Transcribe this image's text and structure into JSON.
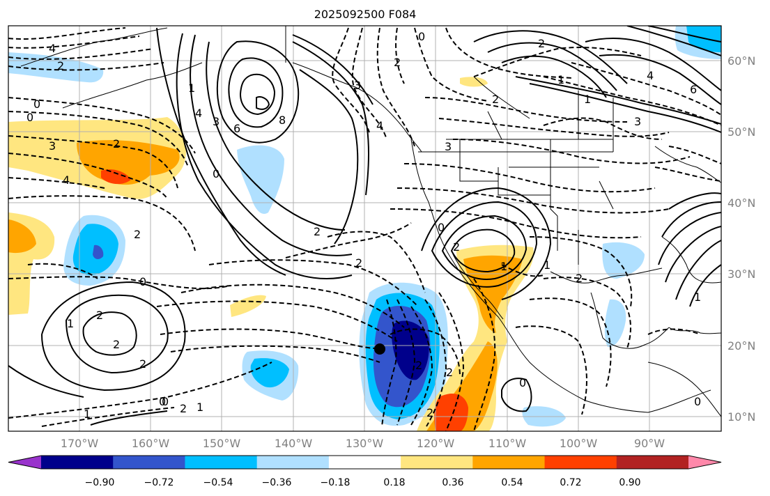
{
  "title": "2025092500 F084",
  "lon_labels": [
    "170°W",
    "160°W",
    "150°W",
    "140°W",
    "130°W",
    "120°W",
    "110°W",
    "100°W",
    "90°W"
  ],
  "lat_labels": [
    "60°N",
    "50°N",
    "40°N",
    "30°N",
    "20°N",
    "10°N"
  ],
  "colorbar": {
    "ticks": [
      "−0.90",
      "−0.72",
      "−0.54",
      "−0.36",
      "−0.18",
      "0.18",
      "0.36",
      "0.54",
      "0.72",
      "0.90"
    ],
    "colors": [
      "#9933cc",
      "#00008b",
      "#3355cc",
      "#00bfff",
      "#b0e0ff",
      "#ffffff",
      "#ffe680",
      "#ffa500",
      "#ff4000",
      "#b22222",
      "#ff88aa"
    ]
  },
  "contour_labels": [
    "4",
    "2",
    "0",
    "3",
    "4",
    "2",
    "0",
    "1",
    "2",
    "0",
    "2",
    "1",
    "4",
    "3",
    "6",
    "8",
    "2",
    "0",
    "2",
    "1",
    "2",
    "0",
    "2",
    "1",
    "2",
    "3",
    "4",
    "3",
    "2",
    "0",
    "2",
    "1",
    "1",
    "2",
    "2",
    "0",
    "0",
    "2",
    "2",
    "1",
    "2",
    "0",
    "3",
    "1",
    "6",
    "4",
    "2",
    "1",
    "0"
  ],
  "marker": "storm-center"
}
